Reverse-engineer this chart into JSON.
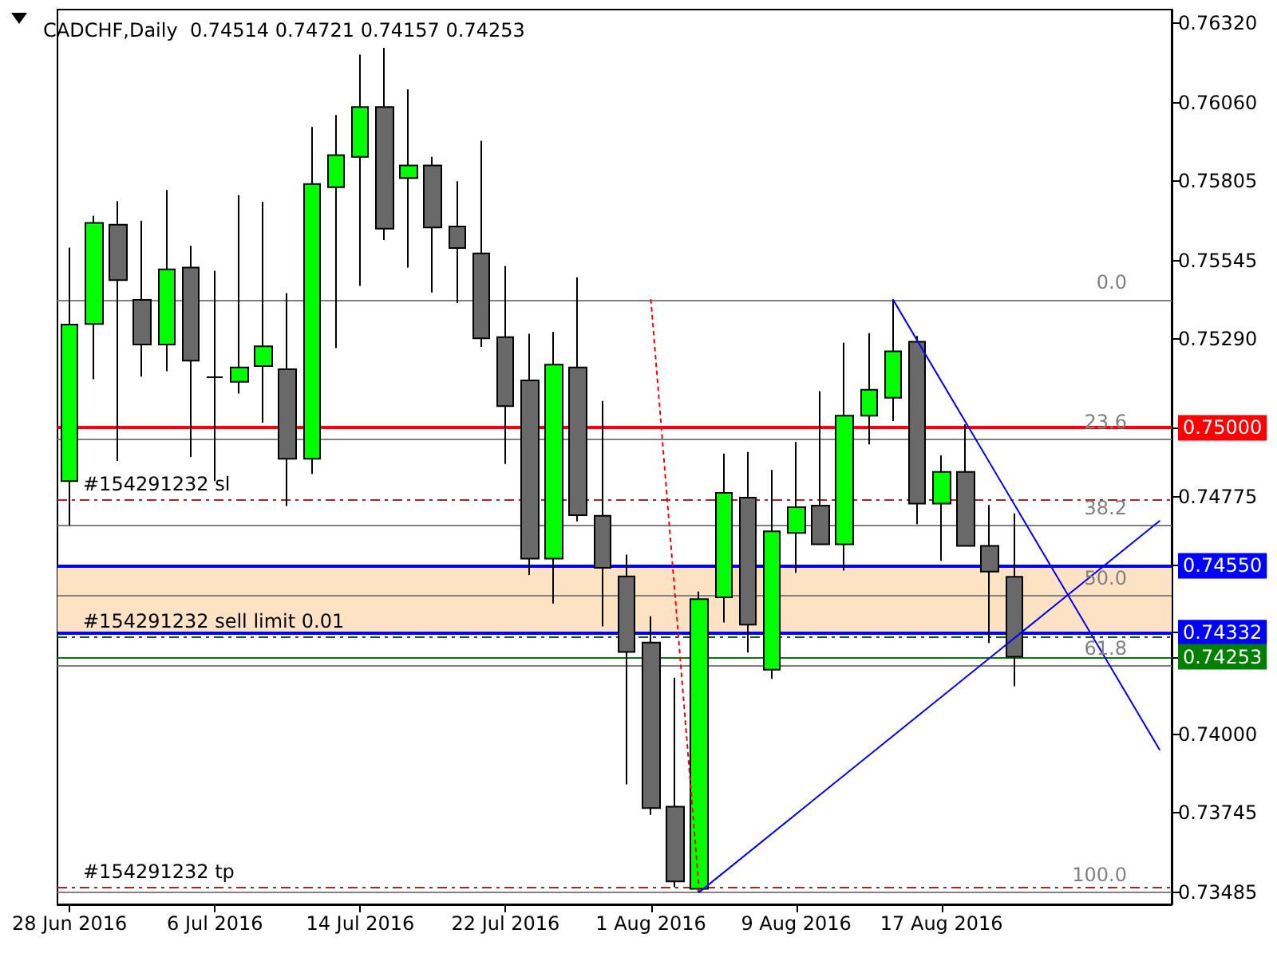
{
  "chart_data": {
    "type": "candlestick",
    "title": "CADCHF,Daily  0.74514 0.74721 0.74157 0.74253",
    "categories": [
      "28 Jun 2016",
      null,
      null,
      null,
      null,
      null,
      "6 Jul 2016",
      null,
      null,
      null,
      null,
      null,
      "14 Jul 2016",
      null,
      null,
      null,
      null,
      null,
      "22 Jul 2016",
      null,
      null,
      null,
      null,
      null,
      "1 Aug 2016",
      null,
      null,
      null,
      null,
      null,
      "9 Aug 2016",
      null,
      null,
      null,
      null,
      null,
      "17 Aug 2016",
      null,
      null,
      null,
      null,
      null,
      null,
      null,
      null,
      null
    ],
    "ohlc": [
      [
        0.74826,
        0.75588,
        0.74682,
        0.75337
      ],
      [
        0.75339,
        0.75692,
        0.75159,
        0.75669
      ],
      [
        0.75663,
        0.7574,
        0.74892,
        0.75482
      ],
      [
        0.75418,
        0.75676,
        0.75167,
        0.75272
      ],
      [
        0.75272,
        0.75776,
        0.75185,
        0.75517
      ],
      [
        0.75523,
        0.75594,
        0.74905,
        0.75219
      ],
      [
        0.75165,
        0.75513,
        0.74826,
        0.75165
      ],
      [
        0.7515,
        0.75759,
        0.75112,
        0.75197
      ],
      [
        0.75202,
        0.75738,
        0.75017,
        0.75266
      ],
      [
        0.75191,
        0.7544,
        0.74745,
        0.74899
      ],
      [
        0.74899,
        0.75982,
        0.7485,
        0.75796
      ],
      [
        0.75785,
        0.76021,
        0.7526,
        0.7589
      ],
      [
        0.75884,
        0.76218,
        0.75463,
        0.76047
      ],
      [
        0.76047,
        0.7624,
        0.75613,
        0.7565
      ],
      [
        0.75815,
        0.76105,
        0.75523,
        0.75856
      ],
      [
        0.75856,
        0.75884,
        0.75442,
        0.75654
      ],
      [
        0.75657,
        0.75805,
        0.75407,
        0.75587
      ],
      [
        0.75569,
        0.75937,
        0.75264,
        0.75292
      ],
      [
        0.75296,
        0.75528,
        0.74882,
        0.75071
      ],
      [
        0.75155,
        0.75307,
        0.7452,
        0.74573
      ],
      [
        0.74573,
        0.75313,
        0.74427,
        0.75206
      ],
      [
        0.75197,
        0.75491,
        0.74695,
        0.74715
      ],
      [
        0.74713,
        0.75088,
        0.74352,
        0.74543
      ],
      [
        0.74515,
        0.74586,
        0.73837,
        0.74269
      ],
      [
        0.74299,
        0.74385,
        0.73737,
        0.73759
      ],
      [
        0.73764,
        0.74185,
        0.73501,
        0.7352
      ],
      [
        0.73496,
        0.74466,
        0.73485,
        0.74441
      ],
      [
        0.74447,
        0.74916,
        0.74365,
        0.74788
      ],
      [
        0.74772,
        0.74921,
        0.74267,
        0.74358
      ],
      [
        0.74211,
        0.74863,
        0.74181,
        0.74662
      ],
      [
        0.74657,
        0.74954,
        0.74527,
        0.74741
      ],
      [
        0.74746,
        0.7512,
        0.7462,
        0.7462
      ],
      [
        0.7462,
        0.75278,
        0.74534,
        0.7504
      ],
      [
        0.7504,
        0.75309,
        0.74946,
        0.75124
      ],
      [
        0.75098,
        0.75418,
        0.75022,
        0.7525
      ],
      [
        0.75281,
        0.753,
        0.74686,
        0.74753
      ],
      [
        0.74753,
        0.7491,
        0.74566,
        0.74856
      ],
      [
        0.74856,
        0.75012,
        0.74615,
        0.74615
      ],
      [
        0.74615,
        0.74748,
        0.74298,
        0.74531
      ],
      [
        0.74514,
        0.74721,
        0.74157,
        0.74253
      ],
      null,
      null,
      null,
      null,
      null,
      null
    ],
    "colors": [
      "#00ff00",
      "#00ff00",
      "#696969",
      "#696969",
      "#00ff00",
      "#696969",
      "#000000",
      "#00ff00",
      "#00ff00",
      "#696969",
      "#00ff00",
      "#00ff00",
      "#00ff00",
      "#696969",
      "#00ff00",
      "#696969",
      "#696969",
      "#696969",
      "#696969",
      "#696969",
      "#00ff00",
      "#696969",
      "#696969",
      "#696969",
      "#696969",
      "#696969",
      "#00ff00",
      "#00ff00",
      "#696969",
      "#00ff00",
      "#00ff00",
      "#696969",
      "#00ff00",
      "#00ff00",
      "#00ff00",
      "#696969",
      "#00ff00",
      "#696969",
      "#696969",
      "#696969",
      null,
      null,
      null,
      null,
      null,
      null
    ],
    "series": [
      {
        "type": "line",
        "color": "#ff0000",
        "line_style": "dotted",
        "values": [
          null,
          null,
          null,
          null,
          null,
          null,
          null,
          null,
          null,
          null,
          null,
          null,
          null,
          null,
          null,
          null,
          null,
          null,
          null,
          null,
          null,
          null,
          null,
          null,
          0.75418,
          null,
          0.73485,
          null,
          null,
          null,
          null,
          null,
          null,
          null,
          null,
          null,
          null,
          null,
          null,
          null,
          null,
          null,
          null,
          null,
          null,
          null
        ]
      },
      {
        "type": "line",
        "color": "#0000ff",
        "line_style": "solid",
        "values": [
          null,
          null,
          null,
          null,
          null,
          null,
          null,
          null,
          null,
          null,
          null,
          null,
          null,
          null,
          null,
          null,
          null,
          null,
          null,
          null,
          null,
          null,
          null,
          null,
          null,
          null,
          0.73485,
          null,
          null,
          null,
          null,
          null,
          null,
          null,
          null,
          null,
          null,
          null,
          null,
          null,
          null,
          null,
          null,
          null,
          null,
          0.74696
        ]
      },
      {
        "type": "line",
        "color": "#0000ff",
        "line_style": "solid",
        "values": [
          null,
          null,
          null,
          null,
          null,
          null,
          null,
          null,
          null,
          null,
          null,
          null,
          null,
          null,
          null,
          null,
          null,
          null,
          null,
          null,
          null,
          null,
          null,
          null,
          null,
          null,
          null,
          null,
          null,
          null,
          null,
          null,
          null,
          null,
          0.75418,
          null,
          null,
          null,
          null,
          null,
          null,
          null,
          null,
          null,
          null,
          0.7395
        ]
      }
    ],
    "ylim": [
      0.73445,
      0.76365
    ],
    "yticks": [
      {
        "value": 0.7632,
        "label": "0.76320"
      },
      {
        "value": 0.7606,
        "label": "0.76060"
      },
      {
        "value": 0.75805,
        "label": "0.75805"
      },
      {
        "value": 0.75545,
        "label": "0.75545"
      },
      {
        "value": 0.7529,
        "label": "0.75290"
      },
      {
        "value": 0.75,
        "label": "0.75000"
      },
      {
        "value": 0.74775,
        "label": "0.74775"
      },
      {
        "value": 0.7455,
        "label": "0.74550"
      },
      {
        "value": 0.74332,
        "label": "0.74332"
      },
      {
        "value": 0.74253,
        "label": "0.74253"
      },
      {
        "value": 0.74,
        "label": "0.74000"
      },
      {
        "value": 0.73745,
        "label": "0.73745"
      },
      {
        "value": 0.73485,
        "label": "0.73485"
      }
    ],
    "bands": [
      {
        "axis": "y",
        "from": 0.74332,
        "to": 0.7455,
        "color": "#fde3c4"
      }
    ],
    "ref_lines": [
      {
        "axis": "y",
        "value": 0.75418,
        "color": "#808080",
        "line_style": "solid"
      },
      {
        "axis": "y",
        "value": 0.74962,
        "color": "#808080",
        "line_style": "solid"
      },
      {
        "axis": "y",
        "value": 0.7468,
        "color": "#808080",
        "line_style": "solid"
      },
      {
        "axis": "y",
        "value": 0.74452,
        "color": "#808080",
        "line_style": "solid"
      },
      {
        "axis": "y",
        "value": 0.74223,
        "color": "#808080",
        "line_style": "solid"
      },
      {
        "axis": "y",
        "value": 0.73485,
        "color": "#808080",
        "line_style": "solid"
      },
      {
        "axis": "y",
        "value": 0.75,
        "color": "#ff0000",
        "line_style": "solid"
      },
      {
        "axis": "y",
        "value": 0.7455,
        "color": "#0000ff",
        "line_style": "solid"
      },
      {
        "axis": "y",
        "value": 0.74332,
        "color": "#0000ff",
        "line_style": "solid"
      },
      {
        "axis": "y",
        "value": 0.74253,
        "color": "#008000",
        "line_style": "solid"
      },
      {
        "axis": "y",
        "value": 0.74765,
        "label": "#154291232 sl",
        "color": "#b22222",
        "line_style": "dashed"
      },
      {
        "axis": "y",
        "value": 0.74317,
        "label": "#154291232 sell limit 0.01",
        "color": "#006400",
        "line_style": "dashed"
      },
      {
        "axis": "y",
        "value": 0.735,
        "label": "#154291232 tp",
        "color": "#b22222",
        "line_style": "dashed"
      }
    ],
    "annotations": [
      {
        "text": "0.0",
        "y": 0.75418
      },
      {
        "text": "23.6",
        "y": 0.74962
      },
      {
        "text": "38.2",
        "y": 0.7468
      },
      {
        "text": "50.0",
        "y": 0.74452
      },
      {
        "text": "61.8",
        "y": 0.74223
      },
      {
        "text": "100.0",
        "y": 0.73485
      }
    ],
    "grid": false,
    "marker": "none"
  }
}
